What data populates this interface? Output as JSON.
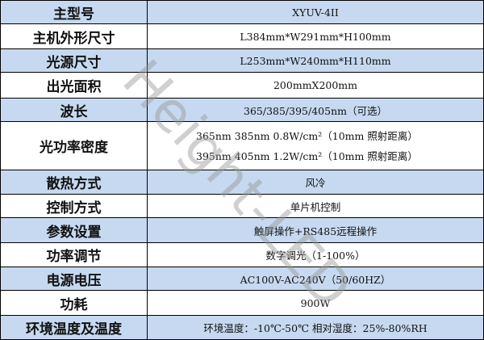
{
  "rows": [
    {
      "label": "主型号",
      "value": "XYUV-4II"
    },
    {
      "label": "主机外形尺寸",
      "value": "L384mm*W291mm*H100mm"
    },
    {
      "label": "光源尺寸",
      "value": "L253mm*W240mm*H110mm"
    },
    {
      "label": "出光面积",
      "value": "200mmX200mm"
    },
    {
      "label": "波长",
      "value": "365/385/395/405nm（可选）"
    },
    {
      "label": "光功率密度",
      "lines": [
        "365nm 385nm  0.8W/cm²（10mm 照射距离）",
        "395nm 405nm  1.2W/cm²（10mm 照射距离）"
      ]
    },
    {
      "label": "散热方式",
      "value": "风冷"
    },
    {
      "label": "控制方式",
      "value": "单片机控制"
    },
    {
      "label": "参数设置",
      "value": "触屏操作+RS485远程操作"
    },
    {
      "label": "功率调节",
      "value": "数字调光（1-100%）"
    },
    {
      "label": "电源电压",
      "value": "AC100V-AC240V（50/60HZ）"
    },
    {
      "label": "功耗",
      "value": "900W"
    },
    {
      "label": "环境温度及温度",
      "value": "环境温度：-10℃-50℃ 相对湿度：25%-80%RH"
    }
  ],
  "watermark": "Height-LED",
  "colors": {
    "row_highlight": "#c6d9f0",
    "border": "#000000"
  }
}
